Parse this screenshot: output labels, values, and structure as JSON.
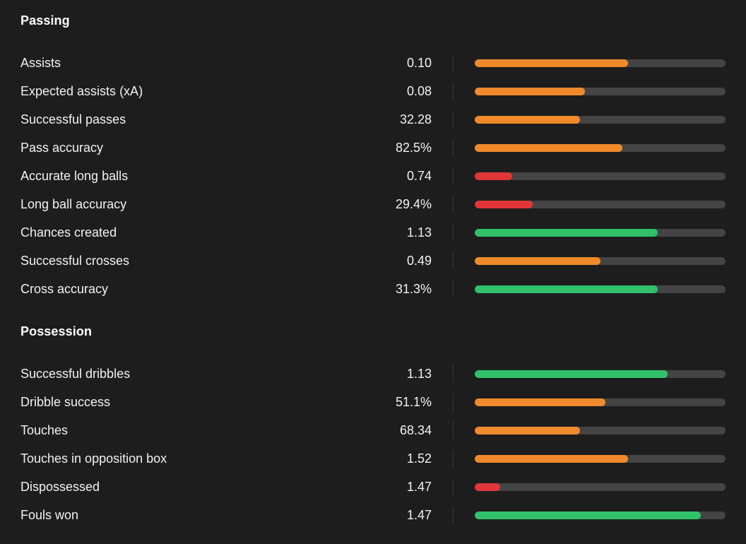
{
  "colors": {
    "background": "#1d1d1d",
    "track": "#444444",
    "orange": "#f08a2b",
    "red": "#e0363a",
    "green": "#30c16a"
  },
  "sections": [
    {
      "title": "Passing",
      "stats": [
        {
          "label": "Assists",
          "value": "0.10",
          "percentile": 0.61,
          "color": "orange"
        },
        {
          "label": "Expected assists (xA)",
          "value": "0.08",
          "percentile": 0.44,
          "color": "orange"
        },
        {
          "label": "Successful passes",
          "value": "32.28",
          "percentile": 0.42,
          "color": "orange"
        },
        {
          "label": "Pass accuracy",
          "value": "82.5%",
          "percentile": 0.59,
          "color": "orange"
        },
        {
          "label": "Accurate long balls",
          "value": "0.74",
          "percentile": 0.15,
          "color": "red"
        },
        {
          "label": "Long ball accuracy",
          "value": "29.4%",
          "percentile": 0.23,
          "color": "red"
        },
        {
          "label": "Chances created",
          "value": "1.13",
          "percentile": 0.73,
          "color": "green"
        },
        {
          "label": "Successful crosses",
          "value": "0.49",
          "percentile": 0.5,
          "color": "orange"
        },
        {
          "label": "Cross accuracy",
          "value": "31.3%",
          "percentile": 0.73,
          "color": "green"
        }
      ]
    },
    {
      "title": "Possession",
      "stats": [
        {
          "label": "Successful dribbles",
          "value": "1.13",
          "percentile": 0.77,
          "color": "green"
        },
        {
          "label": "Dribble success",
          "value": "51.1%",
          "percentile": 0.52,
          "color": "orange"
        },
        {
          "label": "Touches",
          "value": "68.34",
          "percentile": 0.42,
          "color": "orange"
        },
        {
          "label": "Touches in opposition box",
          "value": "1.52",
          "percentile": 0.61,
          "color": "orange"
        },
        {
          "label": "Dispossessed",
          "value": "1.47",
          "percentile": 0.1,
          "color": "red"
        },
        {
          "label": "Fouls won",
          "value": "1.47",
          "percentile": 0.9,
          "color": "green"
        }
      ]
    }
  ]
}
